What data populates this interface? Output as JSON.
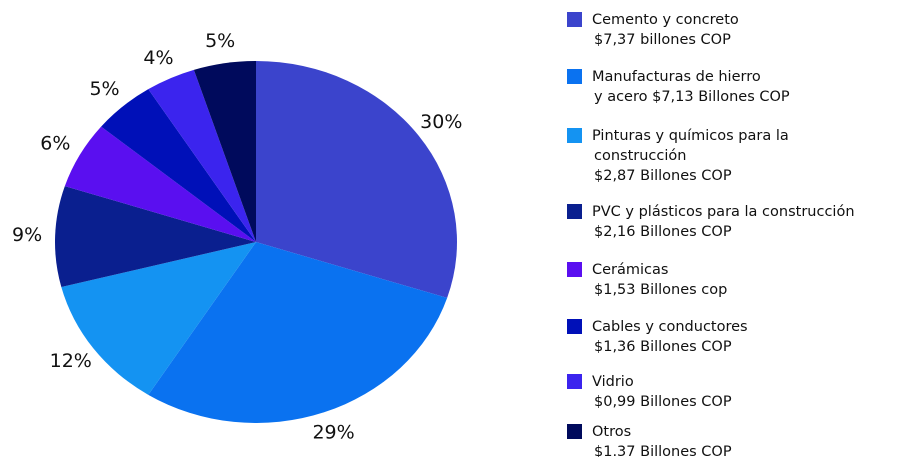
{
  "chart_data": {
    "type": "pie",
    "categories": [
      [
        "Cemento y concreto",
        "$7,37 billones COP"
      ],
      [
        "Manufacturas de hierro",
        "y acero $7,13 Billones COP"
      ],
      [
        "Pinturas y químicos para la",
        "construcción",
        "$2,87 Billones COP"
      ],
      [
        "PVC y plásticos para la construcción",
        "$2,16 Billones COP"
      ],
      [
        "Cerámicas",
        "$1,53 Billones cop"
      ],
      [
        "Cables y conductores",
        "$1,36 Billones COP"
      ],
      [
        "Vidrio",
        "$0,99 Billones COP"
      ],
      [
        "Otros",
        "$1.37 Billones COP"
      ]
    ],
    "values": [
      30,
      29,
      12,
      9,
      6,
      5,
      4,
      5
    ],
    "value_labels": [
      "30%",
      "29%",
      "12%",
      "9%",
      "6%",
      "5%",
      "4%",
      "5%"
    ],
    "colors": [
      "#3b44cc",
      "#0a72f0",
      "#1493f2",
      "#0a1f8f",
      "#5a0ff0",
      "#0010b8",
      "#3b24ee",
      "#000a5c"
    ]
  }
}
